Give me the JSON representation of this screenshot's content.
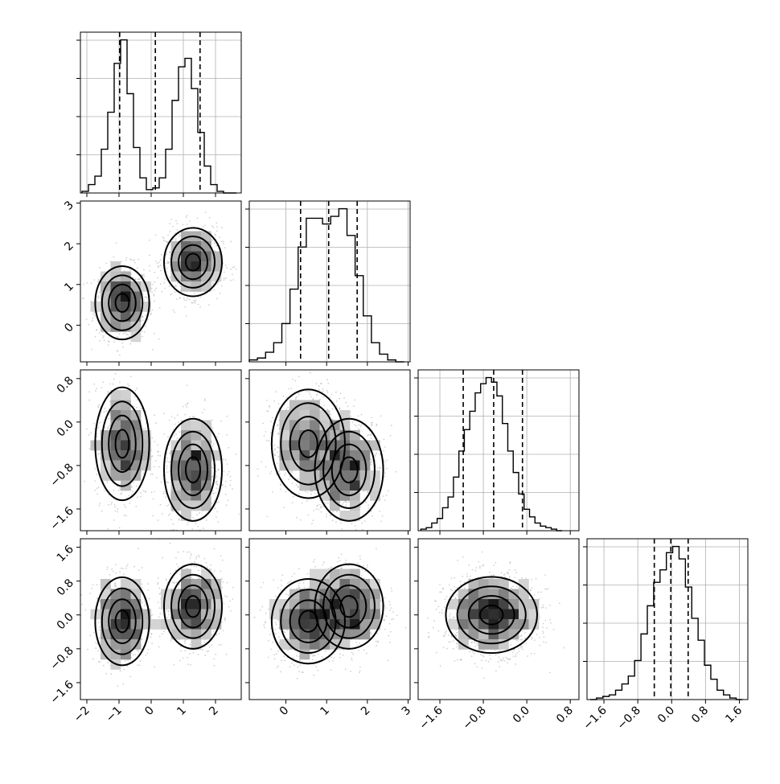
{
  "chart_data": {
    "type": "corner",
    "n_params": 4,
    "grid": true,
    "params": [
      {
        "range": [
          -2.2,
          2.8
        ],
        "ticks": [
          -2,
          -1,
          0,
          1,
          2
        ],
        "tick_labels": [
          "−2",
          "−1",
          "0",
          "1",
          "2"
        ]
      },
      {
        "range": [
          -0.9,
          3.05
        ],
        "ticks": [
          0,
          1,
          2,
          3
        ],
        "tick_labels": [
          "0",
          "1",
          "2",
          "3"
        ]
      },
      {
        "range": [
          -2.0,
          0.96
        ],
        "ticks": [
          -1.6,
          -0.8,
          0.0,
          0.8
        ],
        "tick_labels": [
          "−1.6",
          "−0.8",
          "0.0",
          "0.8"
        ]
      },
      {
        "range": [
          -2.0,
          1.8
        ],
        "ticks": [
          -1.6,
          -0.8,
          0.0,
          0.8,
          1.6
        ],
        "tick_labels": [
          "−1.6",
          "−0.8",
          "0.0",
          "0.8",
          "1.6"
        ]
      }
    ],
    "histograms": [
      {
        "param": 0,
        "bin_centers": [
          -2.05,
          -1.85,
          -1.65,
          -1.45,
          -1.25,
          -1.05,
          -0.85,
          -0.65,
          -0.45,
          -0.25,
          -0.05,
          0.15,
          0.35,
          0.55,
          0.75,
          0.95,
          1.15,
          1.35,
          1.55,
          1.75,
          1.95,
          2.15,
          2.35,
          2.55
        ],
        "counts": [
          1,
          5,
          10,
          26,
          48,
          77,
          91,
          59,
          27,
          9,
          2,
          3,
          9,
          26,
          55,
          75,
          80,
          62,
          36,
          16,
          5,
          1,
          0,
          0
        ],
        "quantiles": [
          -0.98,
          0.13,
          1.52
        ]
      },
      {
        "param": 1,
        "bin_centers": [
          -0.8,
          -0.6,
          -0.4,
          -0.2,
          0.0,
          0.2,
          0.4,
          0.6,
          0.8,
          1.0,
          1.2,
          1.4,
          1.6,
          1.8,
          2.0,
          2.2,
          2.4,
          2.6,
          2.8
        ],
        "counts": [
          1,
          2,
          5,
          10,
          20,
          38,
          60,
          75,
          75,
          72,
          76,
          80,
          66,
          45,
          24,
          10,
          4,
          1,
          0
        ],
        "quantiles": [
          0.36,
          1.05,
          1.75
        ]
      },
      {
        "param": 2,
        "bin_centers": [
          -1.9,
          -1.8,
          -1.7,
          -1.6,
          -1.5,
          -1.4,
          -1.3,
          -1.2,
          -1.1,
          -1.0,
          -0.9,
          -0.8,
          -0.7,
          -0.6,
          -0.5,
          -0.4,
          -0.3,
          -0.2,
          -0.1,
          0.0,
          0.1,
          0.2,
          0.3,
          0.4,
          0.5,
          0.6
        ],
        "counts": [
          1,
          2,
          5,
          8,
          15,
          22,
          35,
          52,
          66,
          78,
          90,
          96,
          100,
          97,
          88,
          70,
          52,
          38,
          24,
          14,
          9,
          5,
          3,
          2,
          1,
          0
        ],
        "quantiles": [
          -1.17,
          -0.61,
          -0.08
        ]
      },
      {
        "param": 3,
        "bin_centers": [
          -1.85,
          -1.7,
          -1.55,
          -1.4,
          -1.25,
          -1.1,
          -0.95,
          -0.8,
          -0.65,
          -0.5,
          -0.35,
          -0.2,
          -0.05,
          0.1,
          0.25,
          0.4,
          0.55,
          0.7,
          0.85,
          1.0,
          1.15,
          1.3,
          1.45,
          1.6
        ],
        "counts": [
          0,
          1,
          2,
          3,
          6,
          10,
          15,
          25,
          42,
          60,
          75,
          83,
          94,
          98,
          90,
          72,
          52,
          38,
          22,
          13,
          6,
          3,
          1,
          0
        ],
        "quantiles": [
          -0.41,
          -0.02,
          0.39
        ]
      }
    ],
    "pairs": [
      {
        "x": 0,
        "y": 1,
        "clusters": [
          {
            "mean": [
              -0.9,
              0.55
            ],
            "sd": [
              0.42,
              0.45
            ]
          },
          {
            "mean": [
              1.3,
              1.55
            ],
            "sd": [
              0.45,
              0.42
            ]
          }
        ]
      },
      {
        "x": 0,
        "y": 2,
        "clusters": [
          {
            "mean": [
              -0.9,
              -0.4
            ],
            "sd": [
              0.42,
              0.52
            ]
          },
          {
            "mean": [
              1.3,
              -0.88
            ],
            "sd": [
              0.45,
              0.47
            ]
          }
        ]
      },
      {
        "x": 1,
        "y": 2,
        "clusters": [
          {
            "mean": [
              0.55,
              -0.4
            ],
            "sd": [
              0.45,
              0.5
            ]
          },
          {
            "mean": [
              1.55,
              -0.88
            ],
            "sd": [
              0.42,
              0.47
            ]
          }
        ]
      },
      {
        "x": 0,
        "y": 3,
        "clusters": [
          {
            "mean": [
              -0.9,
              -0.15
            ],
            "sd": [
              0.42,
              0.52
            ]
          },
          {
            "mean": [
              1.3,
              0.2
            ],
            "sd": [
              0.45,
              0.5
            ]
          }
        ]
      },
      {
        "x": 1,
        "y": 3,
        "clusters": [
          {
            "mean": [
              0.55,
              -0.15
            ],
            "sd": [
              0.45,
              0.5
            ]
          },
          {
            "mean": [
              1.55,
              0.2
            ],
            "sd": [
              0.42,
              0.5
            ]
          }
        ]
      },
      {
        "x": 2,
        "y": 3,
        "clusters": [
          {
            "mean": [
              -0.65,
              0.0
            ],
            "sd": [
              0.42,
              0.45
            ]
          }
        ]
      }
    ]
  }
}
